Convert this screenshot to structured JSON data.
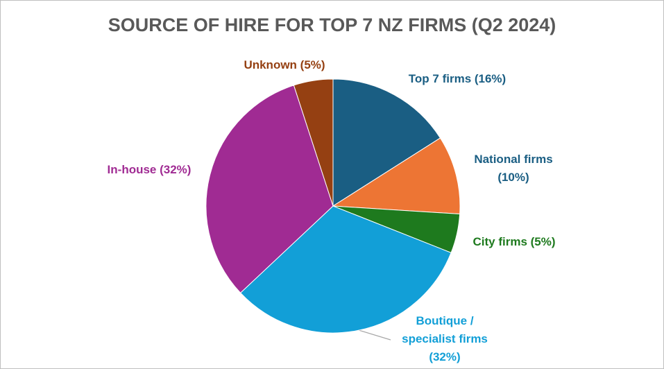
{
  "chart_data": {
    "type": "pie",
    "title": "SOURCE OF HIRE FOR TOP 7 NZ FIRMS (Q2 2024)",
    "values": [
      16,
      10,
      5,
      32,
      32,
      5
    ],
    "value_labels": [
      "Top 7 firms (16%)",
      "National firms (10%)",
      "City firms (5%)",
      "Boutique / specialist firms (32%)",
      "In-house (32%)",
      "Unknown (5%)"
    ],
    "colors": [
      "#1a5e83",
      "#ed7534",
      "#1e7a1e",
      "#129fd7",
      "#a02b93",
      "#954012"
    ],
    "label_colors": [
      "#1a5e83",
      "#1a5e83",
      "#1e7a1e",
      "#129fd7",
      "#a02b93",
      "#954012"
    ]
  }
}
